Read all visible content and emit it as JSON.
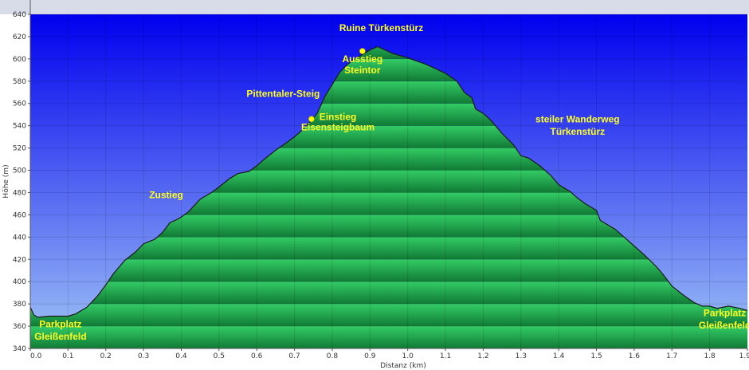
{
  "chart_data": {
    "type": "area",
    "xlabel": "Distanz  (km)",
    "ylabel": "Höhe (m)",
    "xlim": [
      0.0,
      1.9
    ],
    "ylim": [
      340,
      640
    ],
    "x_ticks": [
      "0.0",
      "0.1",
      "0.2",
      "0.3",
      "0.4",
      "0.5",
      "0.6",
      "0.7",
      "0.8",
      "0.9",
      "1.0",
      "1.1",
      "1.2",
      "1.3",
      "1.4",
      "1.5",
      "1.6",
      "1.7",
      "1.8",
      "1.9"
    ],
    "y_ticks": [
      "340",
      "360",
      "380",
      "400",
      "420",
      "440",
      "460",
      "480",
      "500",
      "520",
      "540",
      "560",
      "580",
      "600",
      "620",
      "640"
    ],
    "grid": true,
    "series": [
      {
        "x": [
          0.0,
          0.01,
          0.02,
          0.05,
          0.1,
          0.12,
          0.15,
          0.18,
          0.2,
          0.22,
          0.25,
          0.28,
          0.3,
          0.33,
          0.35,
          0.37,
          0.39,
          0.4,
          0.42,
          0.45,
          0.48,
          0.5,
          0.53,
          0.55,
          0.58,
          0.6,
          0.62,
          0.65,
          0.68,
          0.7,
          0.72,
          0.74,
          0.76,
          0.78,
          0.8,
          0.82,
          0.84,
          0.86,
          0.88,
          0.9,
          0.92,
          0.94,
          0.96,
          1.0,
          1.05,
          1.1,
          1.13,
          1.15,
          1.17,
          1.18,
          1.2,
          1.22,
          1.25,
          1.28,
          1.3,
          1.32,
          1.35,
          1.38,
          1.4,
          1.43,
          1.45,
          1.47,
          1.5,
          1.51,
          1.55,
          1.57,
          1.6,
          1.63,
          1.66,
          1.68,
          1.7,
          1.73,
          1.76,
          1.78,
          1.8,
          1.82,
          1.85,
          1.88,
          1.9
        ],
        "y": [
          377,
          370,
          368,
          369,
          369,
          371,
          377,
          388,
          397,
          407,
          419,
          427,
          434,
          438,
          444,
          453,
          456,
          458,
          463,
          474,
          480,
          485,
          493,
          497,
          499,
          504,
          510,
          518,
          525,
          530,
          536,
          543,
          551,
          566,
          577,
          588,
          595,
          600,
          604,
          608,
          611,
          608,
          605,
          601,
          595,
          587,
          580,
          570,
          565,
          555,
          551,
          545,
          533,
          523,
          513,
          511,
          504,
          495,
          487,
          481,
          475,
          470,
          464,
          455,
          447,
          441,
          432,
          423,
          413,
          405,
          396,
          388,
          381,
          378,
          378,
          376,
          378,
          376,
          374
        ]
      }
    ],
    "annotations": [
      {
        "text": "Ruine Türkenstürz",
        "x": 0.93,
        "y": 625
      },
      {
        "text": "Ausstieg",
        "x": 0.88,
        "y": 597
      },
      {
        "text": "Steintor",
        "x": 0.88,
        "y": 587
      },
      {
        "text": "Pittentaler-Steig",
        "x": 0.67,
        "y": 566
      },
      {
        "text": "Einstieg",
        "x": 0.815,
        "y": 545
      },
      {
        "text": "Eisensteigbaum",
        "x": 0.815,
        "y": 536
      },
      {
        "text": "steiler Wanderweg",
        "x": 1.45,
        "y": 543
      },
      {
        "text": "Türkenstürz",
        "x": 1.45,
        "y": 532
      },
      {
        "text": "Zustieg",
        "x": 0.36,
        "y": 475
      },
      {
        "text": "Parkplatz",
        "x": 0.08,
        "y": 359
      },
      {
        "text": "Gleißenfeld",
        "x": 0.08,
        "y": 348
      },
      {
        "text": "Parkplatz",
        "x": 1.84,
        "y": 369
      },
      {
        "text": "Gleißenfeld",
        "x": 1.84,
        "y": 358
      }
    ],
    "markers": [
      {
        "x": 0.88,
        "y": 607
      },
      {
        "x": 0.745,
        "y": 546
      }
    ],
    "colors": {
      "sky_top": "#0000ee",
      "sky_bottom": "#a0c4f6",
      "fill_light": "#33cc66",
      "fill_dark": "#117a35",
      "outline": "#1a1a1a",
      "annotation": "#ffff22",
      "marker": "#ffff00",
      "top_band": "#d8dce8"
    }
  }
}
